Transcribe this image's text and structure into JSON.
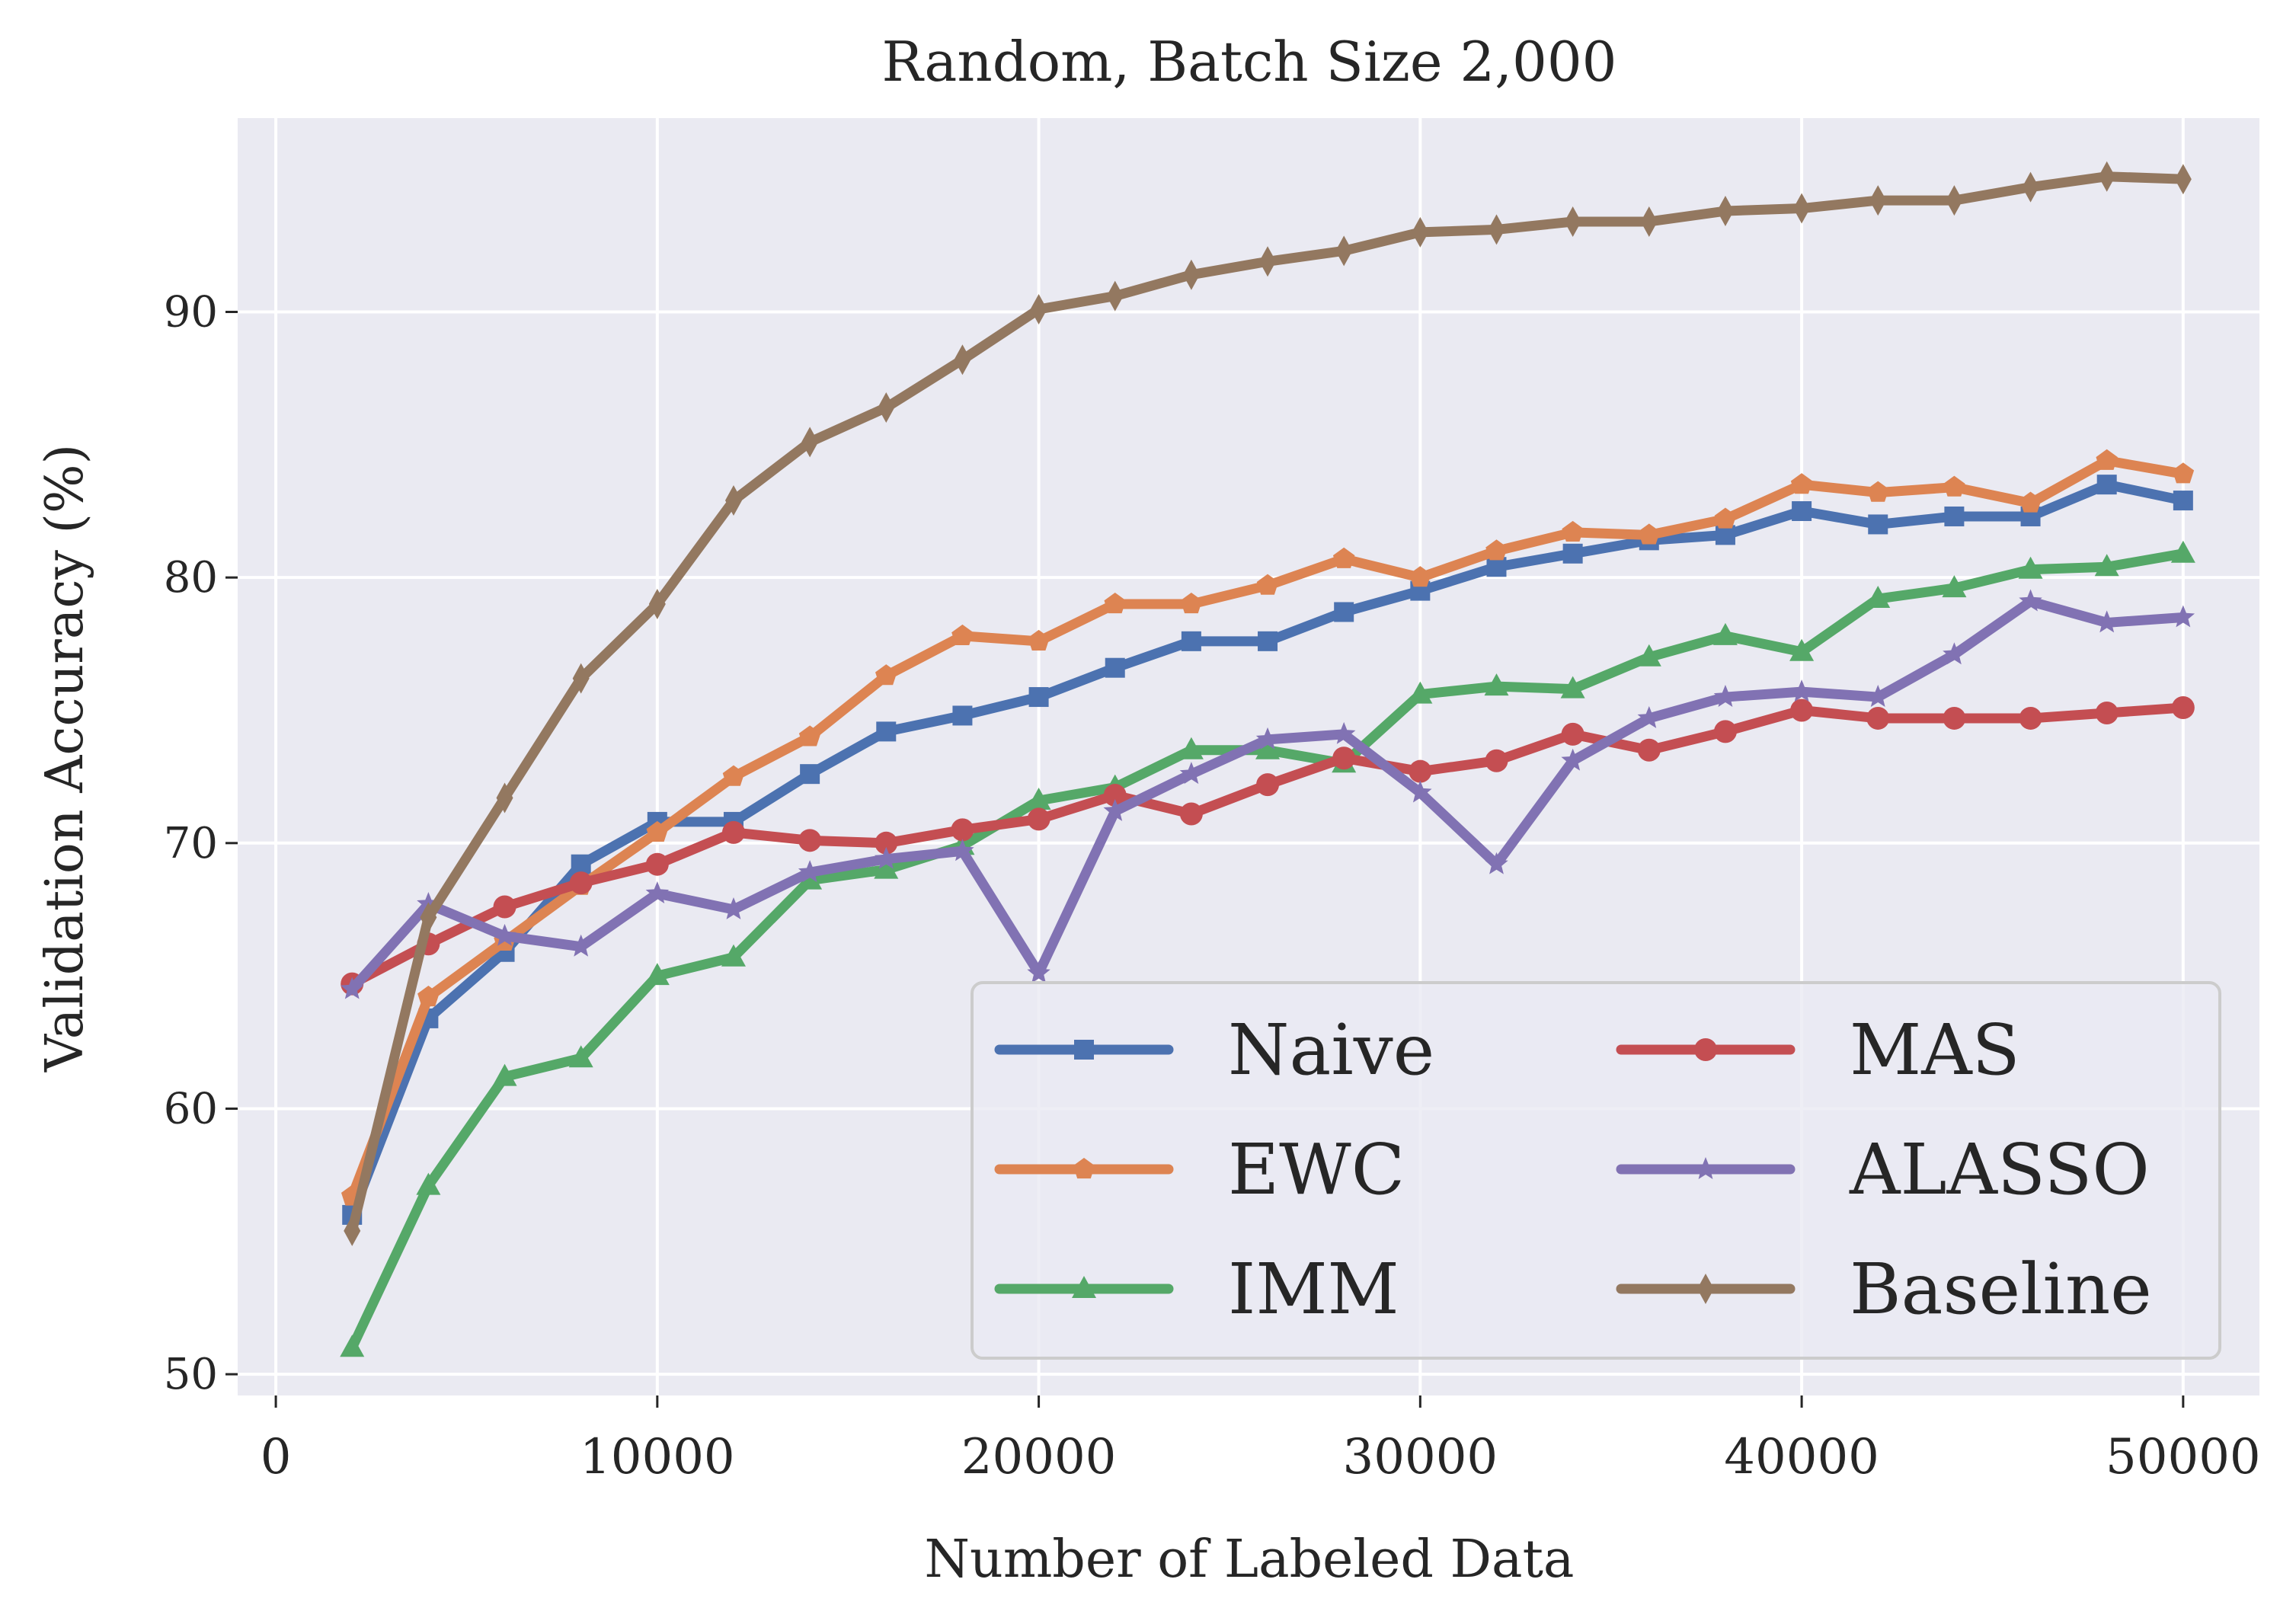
{
  "chart_data": {
    "type": "line",
    "title": "Random, Batch Size 2,000",
    "xlabel": "Number of Labeled Data",
    "ylabel": "Validation Accuracy (%)",
    "xlim": [
      -1000,
      52000
    ],
    "ylim": [
      49.2,
      97.3
    ],
    "xticks": [
      0,
      10000,
      20000,
      30000,
      40000,
      50000
    ],
    "xtick_labels": [
      "0",
      "10000",
      "20000",
      "30000",
      "40000",
      "50000"
    ],
    "yticks": [
      50,
      60,
      70,
      80,
      90
    ],
    "ytick_labels": [
      "50",
      "60",
      "70",
      "80",
      "90"
    ],
    "grid": true,
    "legend_position": "lower-right",
    "legend_columns": 2,
    "x": [
      2000,
      4000,
      6000,
      8000,
      10000,
      12000,
      14000,
      16000,
      18000,
      20000,
      22000,
      24000,
      26000,
      28000,
      30000,
      32000,
      34000,
      36000,
      38000,
      40000,
      42000,
      44000,
      46000,
      48000,
      50000
    ],
    "series": [
      {
        "name": "Naive",
        "color": "#4c72b0",
        "marker": "square",
        "values": [
          56.0,
          63.4,
          65.9,
          69.2,
          70.8,
          70.8,
          72.6,
          74.2,
          74.8,
          75.5,
          76.6,
          77.6,
          77.6,
          78.7,
          79.5,
          80.4,
          80.9,
          81.4,
          81.6,
          82.5,
          82.0,
          82.3,
          82.3,
          83.5,
          82.9
        ]
      },
      {
        "name": "EWC",
        "color": "#dd8452",
        "marker": "pentagon",
        "values": [
          56.7,
          64.2,
          66.3,
          68.4,
          70.4,
          72.5,
          74.0,
          76.3,
          77.8,
          77.6,
          79.0,
          79.0,
          79.7,
          80.7,
          80.0,
          81.0,
          81.7,
          81.6,
          82.2,
          83.5,
          83.2,
          83.4,
          82.8,
          84.4,
          83.9
        ]
      },
      {
        "name": "IMM",
        "color": "#55a868",
        "marker": "triangle",
        "values": [
          51.0,
          57.1,
          61.2,
          61.9,
          65.0,
          65.7,
          68.6,
          69.0,
          69.9,
          71.6,
          72.1,
          73.5,
          73.5,
          73.0,
          75.6,
          75.9,
          75.8,
          77.0,
          77.8,
          77.2,
          79.2,
          79.6,
          80.3,
          80.4,
          80.9
        ]
      },
      {
        "name": "MAS",
        "color": "#c44e52",
        "marker": "circle",
        "values": [
          64.7,
          66.2,
          67.6,
          68.5,
          69.2,
          70.4,
          70.1,
          70.0,
          70.5,
          70.9,
          71.8,
          71.1,
          72.2,
          73.2,
          72.7,
          73.1,
          74.1,
          73.5,
          74.2,
          75.0,
          74.7,
          74.7,
          74.7,
          74.9,
          75.1
        ]
      },
      {
        "name": "ALASSO",
        "color": "#8172b3",
        "marker": "star",
        "values": [
          64.5,
          67.7,
          66.5,
          66.1,
          68.1,
          67.5,
          68.9,
          69.4,
          69.7,
          65.1,
          71.2,
          72.6,
          73.9,
          74.1,
          71.9,
          69.2,
          73.1,
          74.7,
          75.5,
          75.7,
          75.5,
          77.1,
          79.1,
          78.3,
          78.5
        ]
      },
      {
        "name": "Baseline",
        "color": "#937860",
        "marker": "thin-diamond",
        "values": [
          55.4,
          67.2,
          71.7,
          76.2,
          79.0,
          82.9,
          85.1,
          86.4,
          88.2,
          90.1,
          90.6,
          91.4,
          91.9,
          92.3,
          93.0,
          93.1,
          93.4,
          93.4,
          93.8,
          93.9,
          94.2,
          94.2,
          94.7,
          95.1,
          95.0
        ]
      }
    ]
  }
}
